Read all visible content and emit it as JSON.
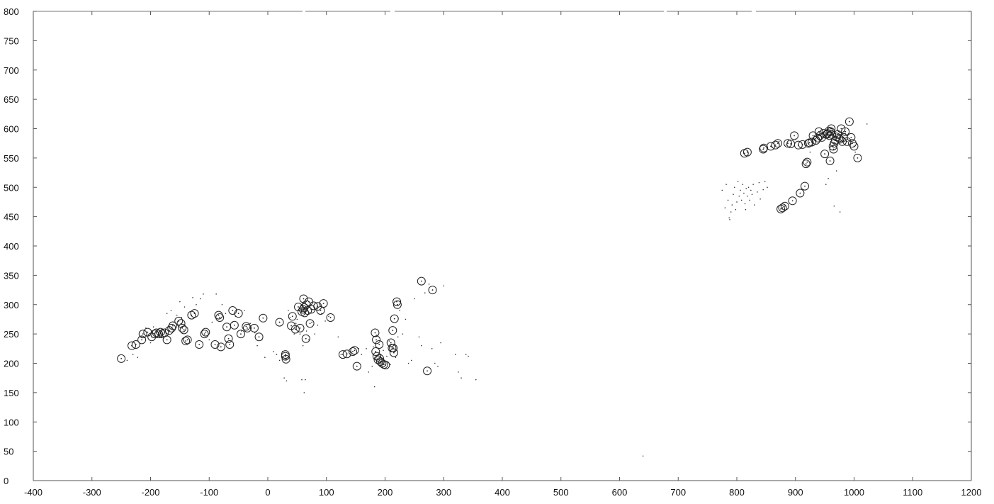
{
  "chart_data": {
    "type": "scatter",
    "title": "",
    "xlabel": "",
    "ylabel": "",
    "xlim": [
      -400,
      1200
    ],
    "ylim": [
      0,
      800
    ],
    "x_ticks": [
      -400,
      -300,
      -200,
      -100,
      0,
      100,
      200,
      300,
      400,
      500,
      600,
      700,
      800,
      900,
      1000,
      1100,
      1200
    ],
    "y_ticks": [
      0,
      50,
      100,
      150,
      200,
      250,
      300,
      350,
      400,
      450,
      500,
      550,
      600,
      650,
      700,
      750,
      800
    ],
    "x_tick_labels": [
      "-400",
      "-300",
      "-200",
      "-100",
      "0",
      "100",
      "200",
      "300",
      "400",
      "500",
      "600",
      "700",
      "800",
      "900",
      "1000",
      "1100",
      "1200"
    ],
    "y_tick_labels": [
      "0",
      "50",
      "100",
      "150",
      "200",
      "250",
      "300",
      "350",
      "400",
      "450",
      "500",
      "550",
      "600",
      "650",
      "700",
      "750",
      "800"
    ],
    "grid": false,
    "series": [
      {
        "marker": "circle",
        "points": [
          [
            -250,
            208
          ],
          [
            -232,
            230
          ],
          [
            -225,
            232
          ],
          [
            -215,
            240
          ],
          [
            -213,
            250
          ],
          [
            -205,
            253
          ],
          [
            -198,
            245
          ],
          [
            -193,
            250
          ],
          [
            -190,
            252
          ],
          [
            -186,
            250
          ],
          [
            -183,
            253
          ],
          [
            -180,
            250
          ],
          [
            -176,
            252
          ],
          [
            -172,
            240
          ],
          [
            -168,
            256
          ],
          [
            -164,
            260
          ],
          [
            -162,
            264
          ],
          [
            -152,
            272
          ],
          [
            -148,
            268
          ],
          [
            -146,
            260
          ],
          [
            -143,
            257
          ],
          [
            -140,
            238
          ],
          [
            -137,
            240
          ],
          [
            -130,
            282
          ],
          [
            -125,
            285
          ],
          [
            -117,
            232
          ],
          [
            -108,
            250
          ],
          [
            -106,
            253
          ],
          [
            -90,
            232
          ],
          [
            -84,
            282
          ],
          [
            -82,
            278
          ],
          [
            -80,
            228
          ],
          [
            -70,
            262
          ],
          [
            -67,
            242
          ],
          [
            -65,
            232
          ],
          [
            -60,
            290
          ],
          [
            -57,
            265
          ],
          [
            -50,
            285
          ],
          [
            -46,
            250
          ],
          [
            -37,
            263
          ],
          [
            -35,
            260
          ],
          [
            -23,
            260
          ],
          [
            -15,
            245
          ],
          [
            -8,
            277
          ],
          [
            20,
            270
          ],
          [
            30,
            215
          ],
          [
            30,
            212
          ],
          [
            31,
            207
          ],
          [
            40,
            264
          ],
          [
            42,
            280
          ],
          [
            47,
            258
          ],
          [
            52,
            296
          ],
          [
            55,
            260
          ],
          [
            58,
            288
          ],
          [
            60,
            292
          ],
          [
            61,
            310
          ],
          [
            62,
            295
          ],
          [
            63,
            286
          ],
          [
            65,
            242
          ],
          [
            66,
            300
          ],
          [
            68,
            290
          ],
          [
            70,
            305
          ],
          [
            72,
            268
          ],
          [
            74,
            292
          ],
          [
            78,
            298
          ],
          [
            85,
            297
          ],
          [
            90,
            290
          ],
          [
            95,
            302
          ],
          [
            107,
            278
          ],
          [
            128,
            215
          ],
          [
            135,
            216
          ],
          [
            145,
            220
          ],
          [
            148,
            222
          ],
          [
            152,
            195
          ],
          [
            183,
            252
          ],
          [
            184,
            220
          ],
          [
            185,
            240
          ],
          [
            186,
            212
          ],
          [
            188,
            206
          ],
          [
            190,
            232
          ],
          [
            191,
            208
          ],
          [
            192,
            203
          ],
          [
            195,
            200
          ],
          [
            198,
            198
          ],
          [
            201,
            197
          ],
          [
            210,
            235
          ],
          [
            212,
            226
          ],
          [
            213,
            256
          ],
          [
            214,
            226
          ],
          [
            215,
            218
          ],
          [
            216,
            276
          ],
          [
            220,
            305
          ],
          [
            221,
            300
          ],
          [
            262,
            340
          ],
          [
            272,
            187
          ],
          [
            281,
            325
          ],
          [
            813,
            558
          ],
          [
            818,
            560
          ],
          [
            845,
            565
          ],
          [
            846,
            567
          ],
          [
            858,
            570
          ],
          [
            866,
            572
          ],
          [
            870,
            575
          ],
          [
            887,
            575
          ],
          [
            892,
            574
          ],
          [
            898,
            588
          ],
          [
            875,
            463
          ],
          [
            878,
            465
          ],
          [
            882,
            468
          ],
          [
            895,
            477
          ],
          [
            908,
            490
          ],
          [
            916,
            502
          ],
          [
            905,
            572
          ],
          [
            912,
            573
          ],
          [
            918,
            540
          ],
          [
            920,
            543
          ],
          [
            922,
            575
          ],
          [
            924,
            576
          ],
          [
            928,
            577
          ],
          [
            930,
            588
          ],
          [
            935,
            580
          ],
          [
            938,
            584
          ],
          [
            940,
            595
          ],
          [
            942,
            588
          ],
          [
            945,
            585
          ],
          [
            948,
            592
          ],
          [
            950,
            557
          ],
          [
            953,
            590
          ],
          [
            955,
            592
          ],
          [
            957,
            596
          ],
          [
            958,
            588
          ],
          [
            959,
            545
          ],
          [
            960,
            595
          ],
          [
            961,
            600
          ],
          [
            962,
            590
          ],
          [
            964,
            570
          ],
          [
            965,
            565
          ],
          [
            966,
            575
          ],
          [
            968,
            580
          ],
          [
            970,
            586
          ],
          [
            972,
            590
          ],
          [
            974,
            584
          ],
          [
            976,
            582
          ],
          [
            978,
            600
          ],
          [
            980,
            578
          ],
          [
            982,
            585
          ],
          [
            985,
            595
          ],
          [
            988,
            578
          ],
          [
            992,
            612
          ],
          [
            995,
            585
          ],
          [
            997,
            575
          ],
          [
            1000,
            570
          ],
          [
            1006,
            550
          ]
        ]
      },
      {
        "marker": "dot",
        "points": [
          [
            -240,
            205
          ],
          [
            -230,
            215
          ],
          [
            -222,
            210
          ],
          [
            -215,
            245
          ],
          [
            -208,
            260
          ],
          [
            -203,
            248
          ],
          [
            -200,
            235
          ],
          [
            -195,
            262
          ],
          [
            -188,
            246
          ],
          [
            -181,
            258
          ],
          [
            -178,
            242
          ],
          [
            -172,
            285
          ],
          [
            -165,
            290
          ],
          [
            -160,
            270
          ],
          [
            -155,
            282
          ],
          [
            -150,
            305
          ],
          [
            -147,
            278
          ],
          [
            -142,
            296
          ],
          [
            -135,
            278
          ],
          [
            -128,
            312
          ],
          [
            -122,
            300
          ],
          [
            -115,
            310
          ],
          [
            -110,
            318
          ],
          [
            -100,
            240
          ],
          [
            -95,
            270
          ],
          [
            -88,
            318
          ],
          [
            -78,
            300
          ],
          [
            -72,
            285
          ],
          [
            -60,
            270
          ],
          [
            -55,
            280
          ],
          [
            -45,
            255
          ],
          [
            -40,
            290
          ],
          [
            -30,
            268
          ],
          [
            -22,
            252
          ],
          [
            -18,
            230
          ],
          [
            -10,
            240
          ],
          [
            -5,
            210
          ],
          [
            10,
            220
          ],
          [
            15,
            215
          ],
          [
            20,
            205
          ],
          [
            25,
            220
          ],
          [
            28,
            175
          ],
          [
            32,
            170
          ],
          [
            35,
            290
          ],
          [
            38,
            278
          ],
          [
            45,
            250
          ],
          [
            48,
            268
          ],
          [
            50,
            275
          ],
          [
            55,
            250
          ],
          [
            58,
            172
          ],
          [
            60,
            230
          ],
          [
            62,
            150
          ],
          [
            64,
            172
          ],
          [
            66,
            255
          ],
          [
            70,
            240
          ],
          [
            75,
            270
          ],
          [
            80,
            250
          ],
          [
            85,
            265
          ],
          [
            92,
            285
          ],
          [
            98,
            272
          ],
          [
            104,
            280
          ],
          [
            120,
            245
          ],
          [
            125,
            215
          ],
          [
            130,
            220
          ],
          [
            140,
            212
          ],
          [
            155,
            225
          ],
          [
            160,
            215
          ],
          [
            168,
            225
          ],
          [
            172,
            185
          ],
          [
            178,
            195
          ],
          [
            180,
            228
          ],
          [
            182,
            160
          ],
          [
            186,
            248
          ],
          [
            193,
            215
          ],
          [
            197,
            222
          ],
          [
            203,
            212
          ],
          [
            207,
            238
          ],
          [
            209,
            198
          ],
          [
            218,
            210
          ],
          [
            222,
            245
          ],
          [
            225,
            290
          ],
          [
            230,
            250
          ],
          [
            235,
            275
          ],
          [
            240,
            200
          ],
          [
            245,
            205
          ],
          [
            250,
            310
          ],
          [
            258,
            245
          ],
          [
            262,
            230
          ],
          [
            268,
            320
          ],
          [
            275,
            335
          ],
          [
            280,
            225
          ],
          [
            285,
            200
          ],
          [
            290,
            195
          ],
          [
            295,
            235
          ],
          [
            300,
            332
          ],
          [
            320,
            215
          ],
          [
            325,
            185
          ],
          [
            330,
            175
          ],
          [
            338,
            215
          ],
          [
            342,
            212
          ],
          [
            355,
            172
          ],
          [
            640,
            42
          ],
          [
            775,
            495
          ],
          [
            780,
            465
          ],
          [
            782,
            505
          ],
          [
            785,
            478
          ],
          [
            787,
            448
          ],
          [
            788,
            445
          ],
          [
            790,
            458
          ],
          [
            792,
            470
          ],
          [
            794,
            488
          ],
          [
            796,
            500
          ],
          [
            798,
            462
          ],
          [
            800,
            475
          ],
          [
            802,
            510
          ],
          [
            804,
            485
          ],
          [
            806,
            495
          ],
          [
            808,
            478
          ],
          [
            810,
            505
          ],
          [
            812,
            490
          ],
          [
            814,
            472
          ],
          [
            815,
            462
          ],
          [
            816,
            498
          ],
          [
            818,
            485
          ],
          [
            820,
            500
          ],
          [
            822,
            478
          ],
          [
            824,
            495
          ],
          [
            826,
            488
          ],
          [
            828,
            505
          ],
          [
            830,
            470
          ],
          [
            835,
            492
          ],
          [
            838,
            508
          ],
          [
            840,
            480
          ],
          [
            845,
            496
          ],
          [
            848,
            510
          ],
          [
            852,
            500
          ],
          [
            860,
            568
          ],
          [
            872,
            578
          ],
          [
            884,
            572
          ],
          [
            900,
            582
          ],
          [
            910,
            568
          ],
          [
            925,
            560
          ],
          [
            935,
            590
          ],
          [
            944,
            598
          ],
          [
            952,
            505
          ],
          [
            956,
            515
          ],
          [
            960,
            600
          ],
          [
            966,
            468
          ],
          [
            970,
            528
          ],
          [
            976,
            458
          ],
          [
            985,
            592
          ],
          [
            1002,
            560
          ],
          [
            1022,
            608
          ]
        ]
      }
    ]
  }
}
